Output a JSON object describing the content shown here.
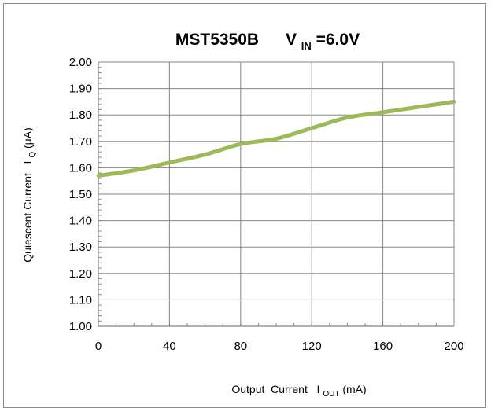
{
  "chart_data": {
    "type": "line",
    "title": {
      "main": "MST5350B",
      "cond_prefix": "V",
      "cond_sub": "IN",
      "cond_suffix": "=6.0V"
    },
    "xlabel": {
      "prefix": "Output  Current   I",
      "sub": "OUT",
      "suffix": "(mA)"
    },
    "ylabel": {
      "prefix": "Quiescent Current   I",
      "sub": "Q",
      "suffix": "(μA)"
    },
    "xlim": [
      0,
      200
    ],
    "ylim": [
      1.0,
      2.0
    ],
    "x_ticks": [
      "0",
      "40",
      "80",
      "120",
      "160",
      "200"
    ],
    "y_ticks": [
      "1.00",
      "1.10",
      "1.20",
      "1.30",
      "1.40",
      "1.50",
      "1.60",
      "1.70",
      "1.80",
      "1.90",
      "2.00"
    ],
    "grid": true,
    "series": [
      {
        "color": "#9bbb59",
        "x": [
          0,
          20,
          40,
          60,
          80,
          100,
          120,
          140,
          160,
          180,
          200
        ],
        "y": [
          1.57,
          1.59,
          1.62,
          1.65,
          1.69,
          1.71,
          1.75,
          1.79,
          1.81,
          1.83,
          1.85
        ]
      }
    ]
  }
}
